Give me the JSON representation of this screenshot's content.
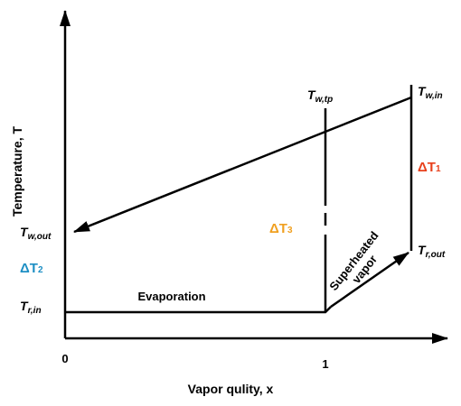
{
  "axes": {
    "y_label": "Temperature, T",
    "x_label": "Vapor qulity, x",
    "x_ticks": [
      "0",
      "1"
    ]
  },
  "labels": {
    "t_w_out": {
      "main": "T",
      "sub": "w,out"
    },
    "t_r_in": {
      "main": "T",
      "sub": "r,in"
    },
    "t_w_tp": {
      "main": "T",
      "sub": "w,tp"
    },
    "t_w_in": {
      "main": "T",
      "sub": "w,in"
    },
    "t_r_out": {
      "main": "T",
      "sub": "r,out"
    },
    "delta_t1": {
      "main": "ΔT",
      "sub": "1"
    },
    "delta_t2": {
      "main": "ΔT",
      "sub": "2"
    },
    "delta_t3": {
      "main": "ΔT",
      "sub": "3"
    }
  },
  "regions": {
    "evaporation": "Evaporation",
    "superheated": [
      "Superheated",
      "vapor"
    ]
  }
}
